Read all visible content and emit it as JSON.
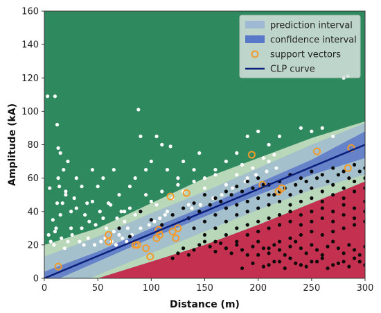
{
  "chart_data": {
    "type": "scatter",
    "title": "",
    "xlabel": "Distance (m)",
    "ylabel": "Amplitude (kA)",
    "xlim": [
      0,
      300
    ],
    "ylim": [
      0,
      160
    ],
    "x_ticks": [
      0,
      50,
      100,
      150,
      200,
      250,
      300
    ],
    "y_ticks": [
      0,
      20,
      40,
      60,
      80,
      100,
      120,
      140,
      160
    ],
    "grid": false,
    "legend_position": "top-right",
    "colors": {
      "background_upper": "#2e8a5e",
      "background_lower": "#c4304f",
      "prediction_interval": "#9fb8d4",
      "confidence_interval": "#5a78c8",
      "support_vector_edge": "#f39a2c",
      "clp_curve": "#0b1f7a",
      "upper_points": "#ffffff",
      "lower_points": "#0a0a0a"
    },
    "legend": [
      {
        "key": "prediction",
        "label": "prediction interval"
      },
      {
        "key": "confidence",
        "label": "confidence interval"
      },
      {
        "key": "support",
        "label": "support vectors"
      },
      {
        "key": "clp",
        "label": "CLP curve"
      }
    ],
    "clp_curve": {
      "x": [
        0,
        300
      ],
      "y": [
        0,
        80
      ]
    },
    "confidence_interval": {
      "x": [
        0,
        50,
        100,
        150,
        200,
        250,
        300
      ],
      "lower": [
        -4,
        10,
        24,
        37,
        50,
        62,
        72
      ],
      "upper": [
        4,
        16,
        30,
        43,
        57,
        71,
        88
      ]
    },
    "prediction_interval": {
      "x": [
        0,
        50,
        100,
        150,
        200,
        250,
        300
      ],
      "lower": [
        -12,
        2,
        15,
        28,
        41,
        53,
        62
      ],
      "upper": [
        13,
        25,
        39,
        52,
        66,
        80,
        93
      ]
    },
    "support_vectors": {
      "x": [
        13,
        60,
        60,
        85,
        87,
        95,
        99,
        105,
        107,
        108,
        118,
        120,
        123,
        125,
        133,
        194,
        204,
        219,
        222,
        255,
        284,
        287
      ],
      "y": [
        7,
        22,
        26,
        20,
        20,
        18,
        13,
        24,
        29,
        26,
        49,
        28,
        24,
        30,
        51,
        74,
        56,
        52,
        54,
        76,
        66,
        78
      ]
    },
    "series": [
      {
        "key": "upper_points",
        "x": [
          3,
          10,
          12,
          13,
          13,
          14,
          15,
          17,
          18,
          20,
          22,
          25,
          30,
          35,
          40,
          45,
          50,
          55,
          60,
          65,
          70,
          75,
          80,
          85,
          88,
          90,
          95,
          100,
          105,
          110,
          115,
          118,
          125,
          130,
          140,
          145,
          150,
          160,
          170,
          180,
          190,
          200,
          210,
          220,
          240,
          250,
          260,
          270,
          280,
          284,
          5,
          8,
          10,
          12,
          15,
          20,
          25,
          28,
          30,
          35,
          38,
          42,
          45,
          48,
          52,
          55,
          58,
          62,
          65,
          68,
          70,
          72,
          75,
          78,
          80,
          85,
          90,
          95,
          100,
          105,
          110,
          115,
          120,
          125,
          130,
          135,
          140,
          150,
          160,
          170,
          180,
          185,
          190,
          195,
          205,
          210,
          215,
          4,
          6,
          9,
          11,
          16,
          19,
          22,
          26,
          33,
          37,
          41,
          47,
          53,
          57,
          63,
          67,
          73,
          77,
          82,
          98,
          103,
          108,
          113,
          138,
          146,
          158,
          166,
          176,
          188,
          198,
          208,
          217
        ],
        "y": [
          109,
          109,
          92,
          78,
          60,
          55,
          75,
          45,
          65,
          50,
          70,
          40,
          60,
          55,
          45,
          65,
          55,
          60,
          45,
          65,
          50,
          40,
          55,
          60,
          101,
          85,
          65,
          70,
          85,
          80,
          65,
          79,
          60,
          70,
          65,
          75,
          60,
          65,
          70,
          75,
          85,
          88,
          80,
          85,
          90,
          88,
          90,
          85,
          120,
          121,
          54,
          35,
          28,
          45,
          38,
          52,
          30,
          48,
          42,
          30,
          38,
          34,
          46,
          32,
          40,
          36,
          30,
          44,
          28,
          36,
          26,
          40,
          34,
          30,
          42,
          38,
          30,
          50,
          46,
          44,
          52,
          40,
          48,
          56,
          52,
          44,
          58,
          54,
          62,
          56,
          62,
          68,
          60,
          66,
          72,
          70,
          74,
          26,
          22,
          20,
          30,
          24,
          18,
          22,
          26,
          22,
          20,
          24,
          20,
          22,
          24,
          22,
          20,
          24,
          22,
          26,
          32,
          34,
          36,
          38,
          42,
          44,
          48,
          50,
          54,
          58,
          62,
          64,
          66
        ]
      },
      {
        "key": "lower_points",
        "x": [
          70,
          80,
          90,
          100,
          110,
          120,
          130,
          140,
          150,
          160,
          170,
          180,
          190,
          200,
          210,
          220,
          230,
          240,
          250,
          260,
          270,
          280,
          290,
          300,
          135,
          145,
          155,
          165,
          175,
          185,
          195,
          205,
          215,
          225,
          235,
          245,
          255,
          265,
          275,
          285,
          295,
          140,
          150,
          160,
          170,
          180,
          190,
          200,
          210,
          220,
          230,
          240,
          250,
          260,
          270,
          280,
          290,
          300,
          150,
          160,
          170,
          180,
          190,
          200,
          210,
          220,
          230,
          240,
          250,
          260,
          270,
          280,
          290,
          300,
          160,
          170,
          180,
          190,
          200,
          210,
          220,
          230,
          240,
          250,
          260,
          270,
          280,
          290,
          300,
          170,
          180,
          190,
          200,
          210,
          220,
          230,
          240,
          250,
          260,
          270,
          280,
          290,
          300,
          200,
          210,
          220,
          230,
          240,
          250,
          260,
          270,
          280,
          290,
          300,
          120,
          125,
          130,
          135,
          140,
          145,
          150,
          155,
          160,
          165,
          170,
          175,
          180,
          185,
          190,
          195,
          200,
          205,
          210,
          215,
          220,
          225,
          230,
          235,
          240,
          245,
          250,
          255,
          260,
          265,
          270,
          275,
          280,
          285,
          290,
          295,
          300,
          210,
          220,
          230,
          240,
          250,
          260,
          270,
          280,
          290,
          300,
          185,
          195,
          205,
          215,
          225,
          235,
          245,
          255,
          265,
          275,
          285,
          295
        ],
        "y": [
          30,
          25,
          40,
          35,
          32,
          38,
          42,
          45,
          50,
          48,
          52,
          55,
          58,
          60,
          56,
          58,
          62,
          60,
          64,
          62,
          66,
          64,
          68,
          66,
          36,
          40,
          44,
          46,
          50,
          52,
          54,
          56,
          50,
          54,
          56,
          58,
          60,
          58,
          62,
          60,
          64,
          30,
          34,
          38,
          42,
          44,
          46,
          48,
          50,
          52,
          50,
          52,
          54,
          52,
          56,
          54,
          58,
          60,
          26,
          30,
          34,
          38,
          40,
          42,
          44,
          46,
          44,
          46,
          48,
          46,
          50,
          48,
          52,
          54,
          22,
          26,
          30,
          32,
          34,
          36,
          38,
          40,
          38,
          40,
          42,
          40,
          44,
          42,
          46,
          18,
          22,
          26,
          28,
          30,
          32,
          34,
          32,
          34,
          36,
          34,
          38,
          36,
          40,
          14,
          18,
          22,
          24,
          26,
          28,
          26,
          28,
          30,
          32,
          34,
          12,
          15,
          18,
          14,
          17,
          20,
          22,
          19,
          16,
          21,
          18,
          15,
          20,
          17,
          14,
          19,
          22,
          18,
          15,
          20,
          17,
          14,
          19,
          22,
          18,
          15,
          20,
          17,
          14,
          19,
          22,
          18,
          15,
          20,
          17,
          14,
          19,
          8,
          10,
          12,
          8,
          10,
          12,
          8,
          10,
          12,
          8,
          6,
          9,
          7,
          10,
          6,
          9,
          7,
          10,
          6,
          9,
          7,
          10
        ]
      }
    ]
  }
}
